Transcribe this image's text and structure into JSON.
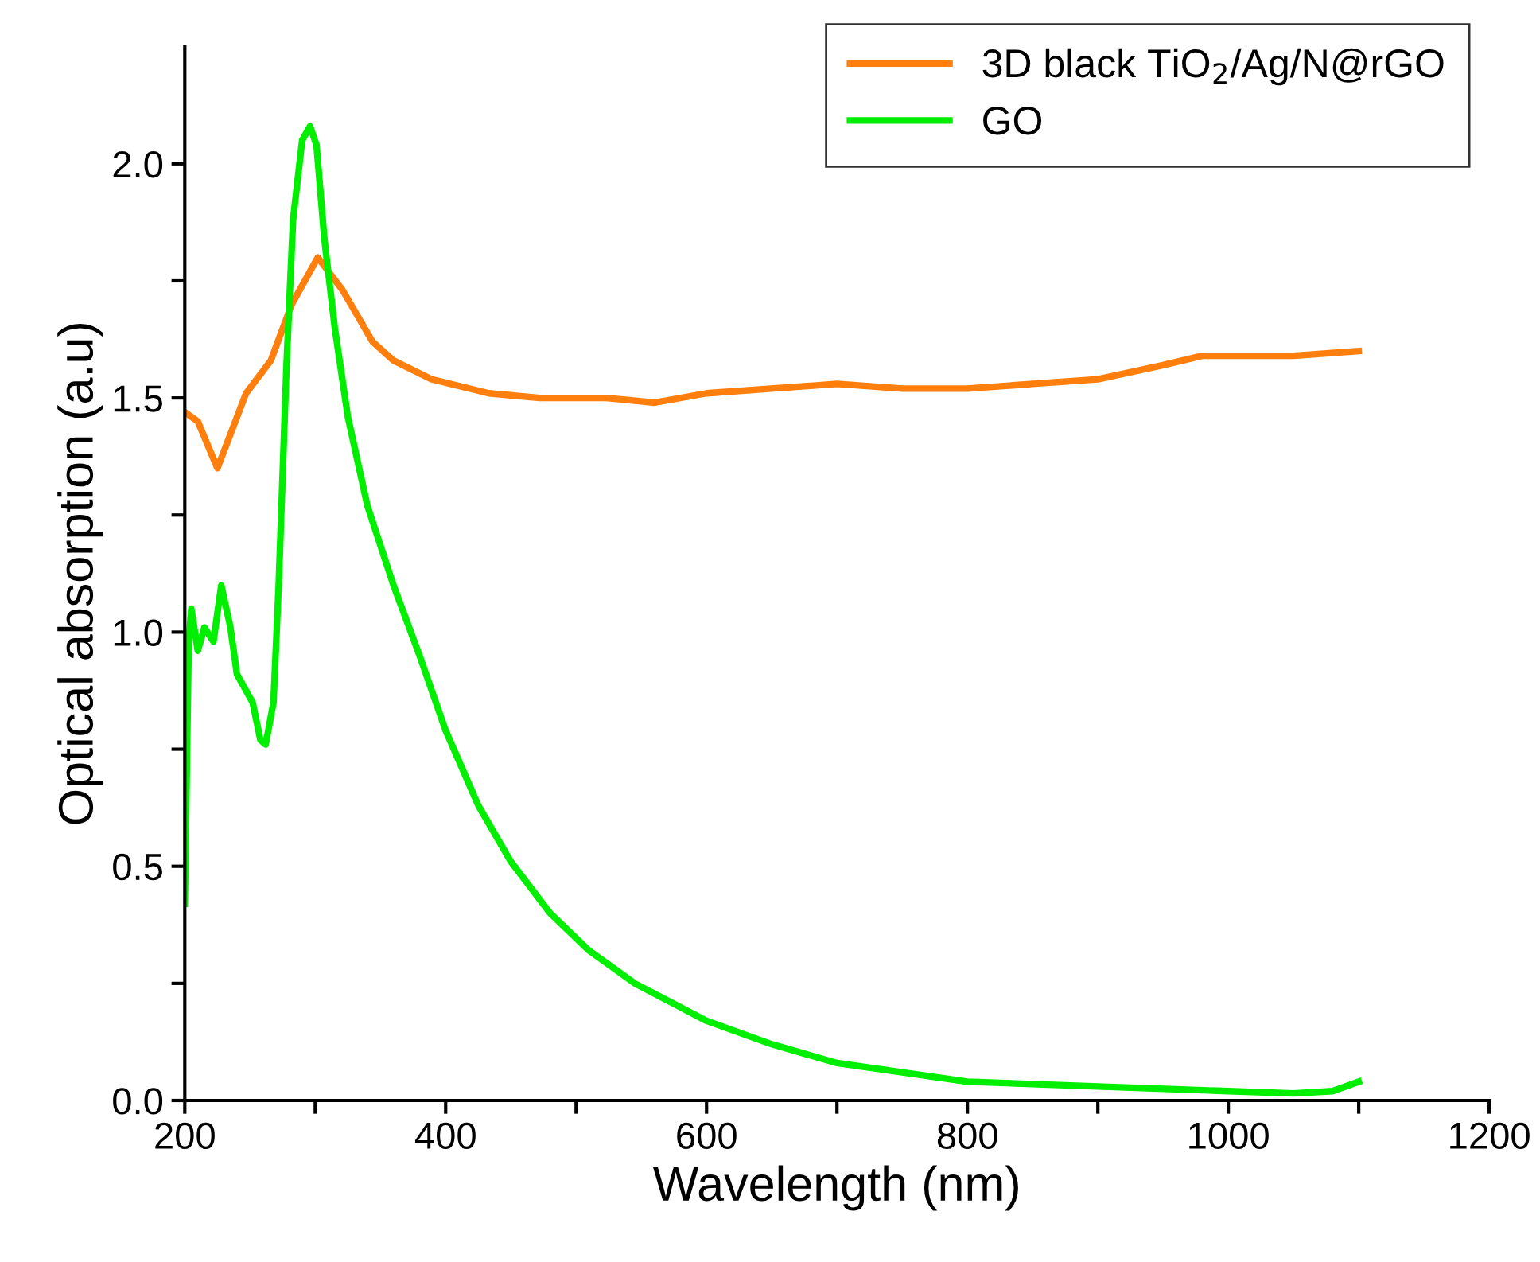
{
  "chart_data": {
    "type": "line",
    "xlabel": "Wavelength (nm)",
    "ylabel": "Optical absorption (a.u)",
    "xlim": [
      200,
      1200
    ],
    "ylim": [
      0,
      2.25
    ],
    "xticks": [
      200,
      {
        "value": 300,
        "label": null
      },
      400,
      {
        "value": 500,
        "label": null
      },
      600,
      {
        "value": 700,
        "label": null
      },
      800,
      {
        "value": 900,
        "label": null
      },
      1000,
      {
        "value": 1100,
        "label": null
      },
      1200
    ],
    "yticks": [
      {
        "value": 0,
        "label": "0.0"
      },
      {
        "value": 0.25,
        "label": null
      },
      0.5,
      {
        "value": 0.75,
        "label": null
      },
      {
        "value": 1,
        "label": "1.0"
      },
      {
        "value": 1.25,
        "label": null
      },
      1.5,
      {
        "value": 1.75,
        "label": null
      },
      {
        "value": 2,
        "label": "2.0"
      }
    ],
    "legend": "top right",
    "grid": false,
    "marker": "none",
    "line_style": "solid",
    "series": [
      {
        "name": "3D black TiO$_{2}$/Ag/N@rGO",
        "color": "#ff7f0e",
        "x": [
          200,
          210,
          225,
          247,
          266,
          282,
          302,
          321,
          344,
          360,
          389,
          433,
          472,
          523,
          560,
          600,
          700,
          750,
          800,
          850,
          900,
          950,
          980,
          1050,
          1100
        ],
        "values": [
          1.47,
          1.45,
          1.35,
          1.51,
          1.58,
          1.7,
          1.8,
          1.73,
          1.62,
          1.58,
          1.54,
          1.51,
          1.5,
          1.5,
          1.49,
          1.51,
          1.53,
          1.52,
          1.52,
          1.53,
          1.54,
          1.57,
          1.59,
          1.59,
          1.6
        ]
      },
      {
        "name": "GO",
        "color": "#00ee00",
        "x": [
          200,
          203,
          205,
          210,
          215,
          222,
          228,
          235,
          240,
          246,
          252,
          258,
          262,
          268,
          272,
          278,
          283,
          290,
          296,
          301,
          307,
          315,
          325,
          340,
          360,
          380,
          400,
          425,
          450,
          480,
          510,
          545,
          600,
          650,
          700,
          800,
          900,
          1000,
          1050,
          1080,
          1100
        ],
        "values": [
          0.42,
          0.98,
          1.05,
          0.96,
          1.01,
          0.98,
          1.1,
          1.01,
          0.91,
          0.88,
          0.85,
          0.77,
          0.76,
          0.85,
          1.1,
          1.57,
          1.88,
          2.05,
          2.08,
          2.04,
          1.84,
          1.65,
          1.46,
          1.27,
          1.1,
          0.95,
          0.79,
          0.63,
          0.51,
          0.4,
          0.32,
          0.25,
          0.17,
          0.12,
          0.08,
          0.04,
          0.03,
          0.02,
          0.015,
          0.02,
          0.04
        ]
      }
    ]
  }
}
